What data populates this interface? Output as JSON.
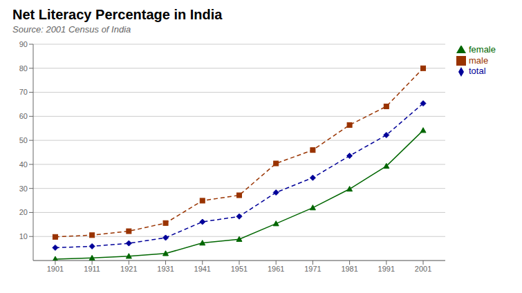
{
  "chart_data": {
    "type": "line",
    "title": "Net Literacy Percentage in India",
    "subtitle": "Source: 2001 Census of India",
    "x": [
      1901,
      1911,
      1921,
      1931,
      1941,
      1951,
      1961,
      1971,
      1981,
      1991,
      2001
    ],
    "xlim": [
      1895,
      2007
    ],
    "xticks": [
      1901,
      1911,
      1921,
      1931,
      1941,
      1951,
      1961,
      1971,
      1981,
      1991,
      2001
    ],
    "ylim": [
      0,
      90
    ],
    "yticks": [
      10,
      20,
      30,
      40,
      50,
      60,
      70,
      80,
      90
    ],
    "grid": true,
    "legend": "right",
    "series": [
      {
        "name": "total",
        "color": "#000099",
        "marker": "diamond",
        "line_style": "dashed",
        "values": [
          5.35,
          5.92,
          7.16,
          9.5,
          16.1,
          18.33,
          28.3,
          34.45,
          43.57,
          52.21,
          65.38
        ]
      },
      {
        "name": "male",
        "color": "#993300",
        "marker": "square",
        "line_style": "dashed",
        "values": [
          9.83,
          10.56,
          12.21,
          15.59,
          24.9,
          27.16,
          40.4,
          45.96,
          56.38,
          64.13,
          80.0
        ]
      },
      {
        "name": "female",
        "color": "#006600",
        "marker": "triangle",
        "line_style": "solid",
        "values": [
          0.6,
          1.05,
          1.81,
          2.93,
          7.3,
          8.86,
          15.35,
          21.97,
          29.76,
          39.29,
          54.16
        ]
      }
    ]
  }
}
